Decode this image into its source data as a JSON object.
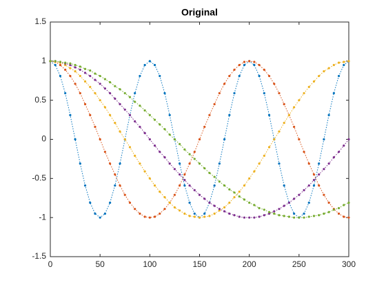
{
  "chart_data": {
    "type": "line",
    "title": "Original",
    "x": [
      0,
      5,
      10,
      15,
      20,
      25,
      30,
      35,
      40,
      45,
      50,
      55,
      60,
      65,
      70,
      75,
      80,
      85,
      90,
      95,
      100,
      105,
      110,
      115,
      120,
      125,
      130,
      135,
      140,
      145,
      150,
      155,
      160,
      165,
      170,
      175,
      180,
      185,
      190,
      195,
      200,
      205,
      210,
      215,
      220,
      225,
      230,
      235,
      240,
      245,
      250,
      255,
      260,
      265,
      270,
      275,
      280,
      285,
      290,
      295,
      300
    ],
    "series": [
      {
        "color": "#0072BD",
        "values": [
          1,
          0.95,
          0.81,
          0.59,
          0.31,
          0,
          -0.31,
          -0.59,
          -0.81,
          -0.95,
          -1,
          -0.95,
          -0.81,
          -0.59,
          -0.31,
          0,
          0.31,
          0.59,
          0.81,
          0.95,
          1,
          0.95,
          0.81,
          0.59,
          0.31,
          0,
          -0.31,
          -0.59,
          -0.81,
          -0.95,
          -1,
          -0.95,
          -0.81,
          -0.59,
          -0.31,
          0,
          0.31,
          0.59,
          0.81,
          0.95,
          1,
          0.95,
          0.81,
          0.59,
          0.31,
          0,
          -0.31,
          -0.59,
          -0.81,
          -0.95,
          -1,
          -0.95,
          -0.81,
          -0.59,
          -0.31,
          0,
          0.31,
          0.59,
          0.81,
          0.95,
          1
        ]
      },
      {
        "color": "#D95319",
        "values": [
          1,
          0.99,
          0.95,
          0.89,
          0.81,
          0.71,
          0.59,
          0.45,
          0.31,
          0.16,
          0,
          -0.16,
          -0.31,
          -0.45,
          -0.59,
          -0.71,
          -0.81,
          -0.89,
          -0.95,
          -0.99,
          -1,
          -0.99,
          -0.95,
          -0.89,
          -0.81,
          -0.71,
          -0.59,
          -0.45,
          -0.31,
          -0.16,
          0,
          0.16,
          0.31,
          0.45,
          0.59,
          0.71,
          0.81,
          0.89,
          0.95,
          0.99,
          1,
          0.99,
          0.95,
          0.89,
          0.81,
          0.71,
          0.59,
          0.45,
          0.31,
          0.16,
          0,
          -0.16,
          -0.31,
          -0.45,
          -0.59,
          -0.71,
          -0.81,
          -0.89,
          -0.95,
          -0.99,
          -1
        ]
      },
      {
        "color": "#EDB120",
        "values": [
          1,
          0.99,
          0.98,
          0.95,
          0.91,
          0.87,
          0.81,
          0.74,
          0.67,
          0.59,
          0.5,
          0.41,
          0.31,
          0.21,
          0.1,
          0,
          -0.1,
          -0.21,
          -0.31,
          -0.41,
          -0.5,
          -0.59,
          -0.67,
          -0.74,
          -0.81,
          -0.87,
          -0.91,
          -0.95,
          -0.98,
          -0.99,
          -1,
          -0.99,
          -0.98,
          -0.95,
          -0.91,
          -0.87,
          -0.81,
          -0.74,
          -0.67,
          -0.59,
          -0.5,
          -0.41,
          -0.31,
          -0.21,
          -0.1,
          0,
          0.1,
          0.21,
          0.31,
          0.41,
          0.5,
          0.59,
          0.67,
          0.74,
          0.81,
          0.87,
          0.91,
          0.95,
          0.98,
          0.99,
          1
        ]
      },
      {
        "color": "#7E2F8E",
        "values": [
          1,
          1,
          0.99,
          0.97,
          0.95,
          0.92,
          0.89,
          0.85,
          0.81,
          0.76,
          0.71,
          0.65,
          0.59,
          0.52,
          0.45,
          0.38,
          0.31,
          0.23,
          0.16,
          0.08,
          0,
          -0.08,
          -0.16,
          -0.23,
          -0.31,
          -0.38,
          -0.45,
          -0.52,
          -0.59,
          -0.65,
          -0.71,
          -0.76,
          -0.81,
          -0.85,
          -0.89,
          -0.92,
          -0.95,
          -0.97,
          -0.99,
          -1,
          -1,
          -1,
          -0.99,
          -0.97,
          -0.95,
          -0.92,
          -0.89,
          -0.85,
          -0.81,
          -0.76,
          -0.71,
          -0.65,
          -0.59,
          -0.52,
          -0.45,
          -0.38,
          -0.31,
          -0.23,
          -0.16,
          -0.08,
          0
        ]
      },
      {
        "color": "#77AC30",
        "values": [
          1,
          1,
          0.99,
          0.98,
          0.97,
          0.95,
          0.93,
          0.9,
          0.88,
          0.84,
          0.81,
          0.77,
          0.73,
          0.68,
          0.64,
          0.59,
          0.54,
          0.48,
          0.43,
          0.37,
          0.31,
          0.25,
          0.19,
          0.13,
          0.06,
          0,
          -0.06,
          -0.13,
          -0.19,
          -0.25,
          -0.31,
          -0.37,
          -0.43,
          -0.48,
          -0.54,
          -0.59,
          -0.64,
          -0.68,
          -0.73,
          -0.77,
          -0.81,
          -0.84,
          -0.88,
          -0.9,
          -0.93,
          -0.95,
          -0.97,
          -0.98,
          -0.99,
          -1,
          -1,
          -1,
          -0.99,
          -0.98,
          -0.97,
          -0.95,
          -0.93,
          -0.9,
          -0.88,
          -0.84,
          -0.81
        ]
      }
    ],
    "xlim": [
      0,
      300
    ],
    "xticks": [
      0,
      50,
      100,
      150,
      200,
      250,
      300
    ],
    "ylim": [
      -1.5,
      1.5
    ],
    "yticks": [
      -1.5,
      -1,
      -0.5,
      0,
      0.5,
      1,
      1.5
    ]
  }
}
